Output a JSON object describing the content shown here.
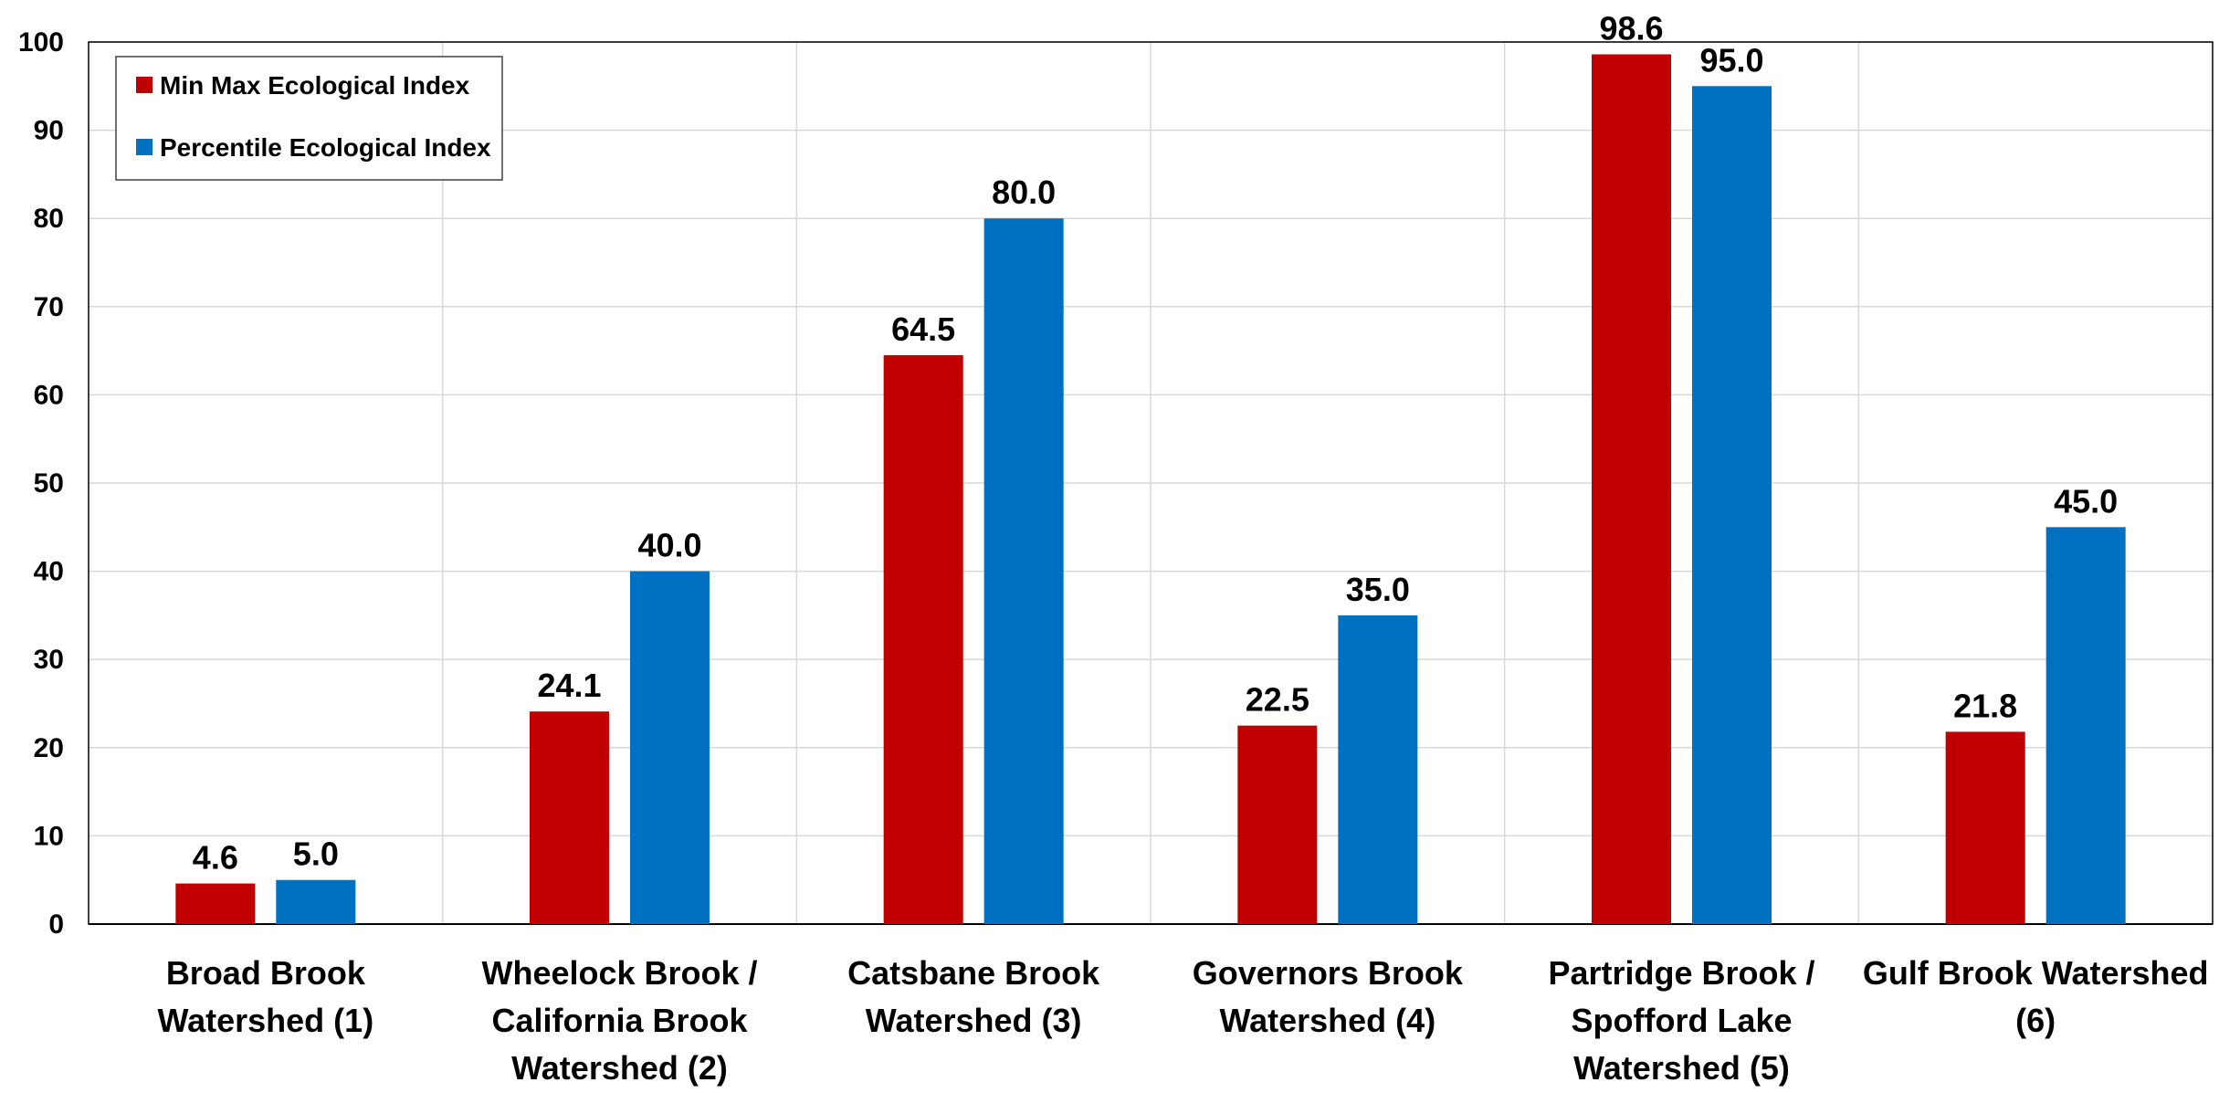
{
  "chart_data": {
    "type": "bar",
    "title": "",
    "xlabel": "",
    "ylabel": "",
    "ylim": [
      0,
      100
    ],
    "yticks": [
      0,
      10,
      20,
      30,
      40,
      50,
      60,
      70,
      80,
      90,
      100
    ],
    "grid": true,
    "legend_position": "top-left",
    "categories": [
      [
        "Broad Brook",
        "Watershed (1)"
      ],
      [
        "Wheelock Brook /",
        "California Brook",
        "Watershed (2)"
      ],
      [
        "Catsbane Brook",
        "Watershed (3)"
      ],
      [
        "Governors Brook",
        "Watershed (4)"
      ],
      [
        "Partridge Brook /",
        "Spofford Lake",
        "Watershed (5)"
      ],
      [
        "Gulf Brook Watershed",
        "(6)"
      ]
    ],
    "series": [
      {
        "name": "Min Max Ecological Index",
        "color": "#c00000",
        "values": [
          4.6,
          24.1,
          64.5,
          22.5,
          98.6,
          21.8
        ],
        "labels": [
          "4.6",
          "24.1",
          "64.5",
          "22.5",
          "98.6",
          "21.8"
        ]
      },
      {
        "name": "Percentile Ecological Index",
        "color": "#0070c0",
        "values": [
          5.0,
          40.0,
          80.0,
          35.0,
          95.0,
          45.0
        ],
        "labels": [
          "5.0",
          "40.0",
          "80.0",
          "35.0",
          "95.0",
          "45.0"
        ]
      }
    ]
  }
}
